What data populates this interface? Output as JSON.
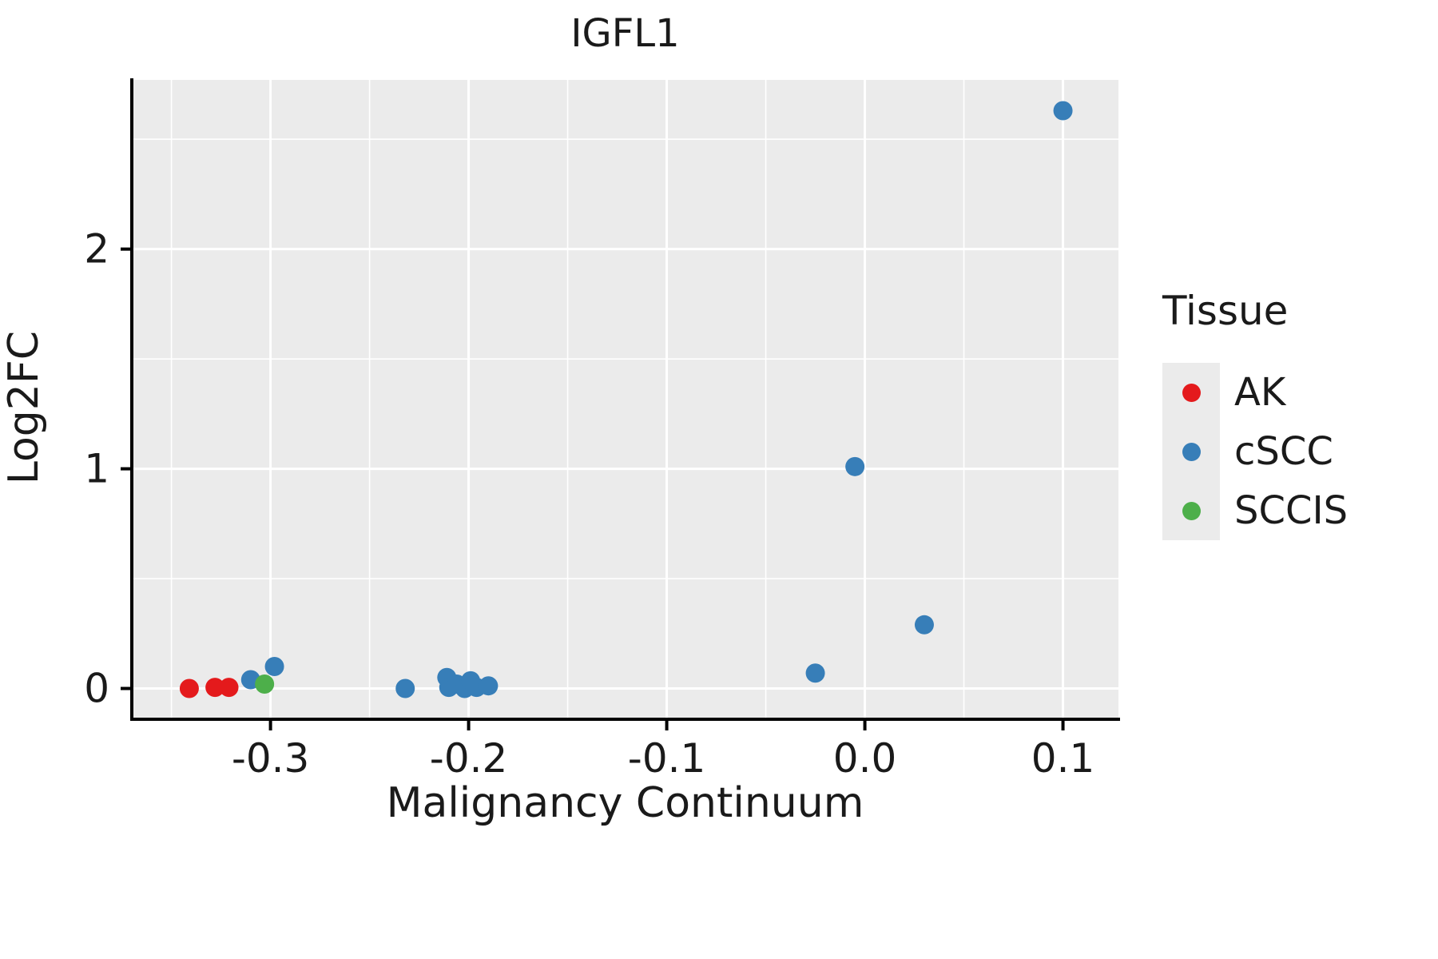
{
  "title": "IGFL1",
  "axes": {
    "x": {
      "label": "Malignancy Continuum",
      "ticks": [
        -0.3,
        -0.2,
        -0.1,
        0.0,
        0.1
      ],
      "tick_labels": [
        "-0.3",
        "-0.2",
        "-0.1",
        "0.0",
        "0.1"
      ],
      "minor_ticks": [
        -0.35,
        -0.25,
        -0.15,
        -0.05,
        0.05
      ]
    },
    "y": {
      "label": "Log2FC",
      "ticks": [
        0,
        1,
        2
      ],
      "tick_labels": [
        "0",
        "1",
        "2"
      ],
      "minor_ticks": [
        0.5,
        1.5,
        2.5
      ]
    }
  },
  "legend": {
    "title": "Tissue"
  },
  "colors": {
    "panel_background": "#ebebeb",
    "gridline": "#ffffff",
    "axis_line": "#000000",
    "ak_red": "#e41a1c",
    "cscc_blue": "#377eb8",
    "sccis_green": "#4daf4a"
  },
  "chart_data": {
    "type": "scatter",
    "title": "IGFL1",
    "xlabel": "Malignancy Continuum",
    "ylabel": "Log2FC",
    "xlim": [
      -0.37,
      0.128
    ],
    "ylim": [
      -0.14,
      2.77
    ],
    "grid": "on",
    "legend_position": "right",
    "series": [
      {
        "name": "AK",
        "color": "#e41a1c",
        "points": [
          [
            -0.341,
            0.0
          ],
          [
            -0.328,
            0.005
          ],
          [
            -0.321,
            0.005
          ]
        ]
      },
      {
        "name": "cSCC",
        "color": "#377eb8",
        "points": [
          [
            -0.31,
            0.04
          ],
          [
            -0.298,
            0.1
          ],
          [
            -0.232,
            0.0
          ],
          [
            -0.211,
            0.05
          ],
          [
            -0.21,
            0.005
          ],
          [
            -0.206,
            0.02
          ],
          [
            -0.202,
            0.0
          ],
          [
            -0.199,
            0.035
          ],
          [
            -0.196,
            0.005
          ],
          [
            -0.19,
            0.012
          ],
          [
            -0.025,
            0.07
          ],
          [
            -0.005,
            1.01
          ],
          [
            0.03,
            0.29
          ],
          [
            0.1,
            2.63
          ]
        ]
      },
      {
        "name": "SCCIS",
        "color": "#4daf4a",
        "points": [
          [
            -0.303,
            0.02
          ]
        ]
      }
    ]
  }
}
